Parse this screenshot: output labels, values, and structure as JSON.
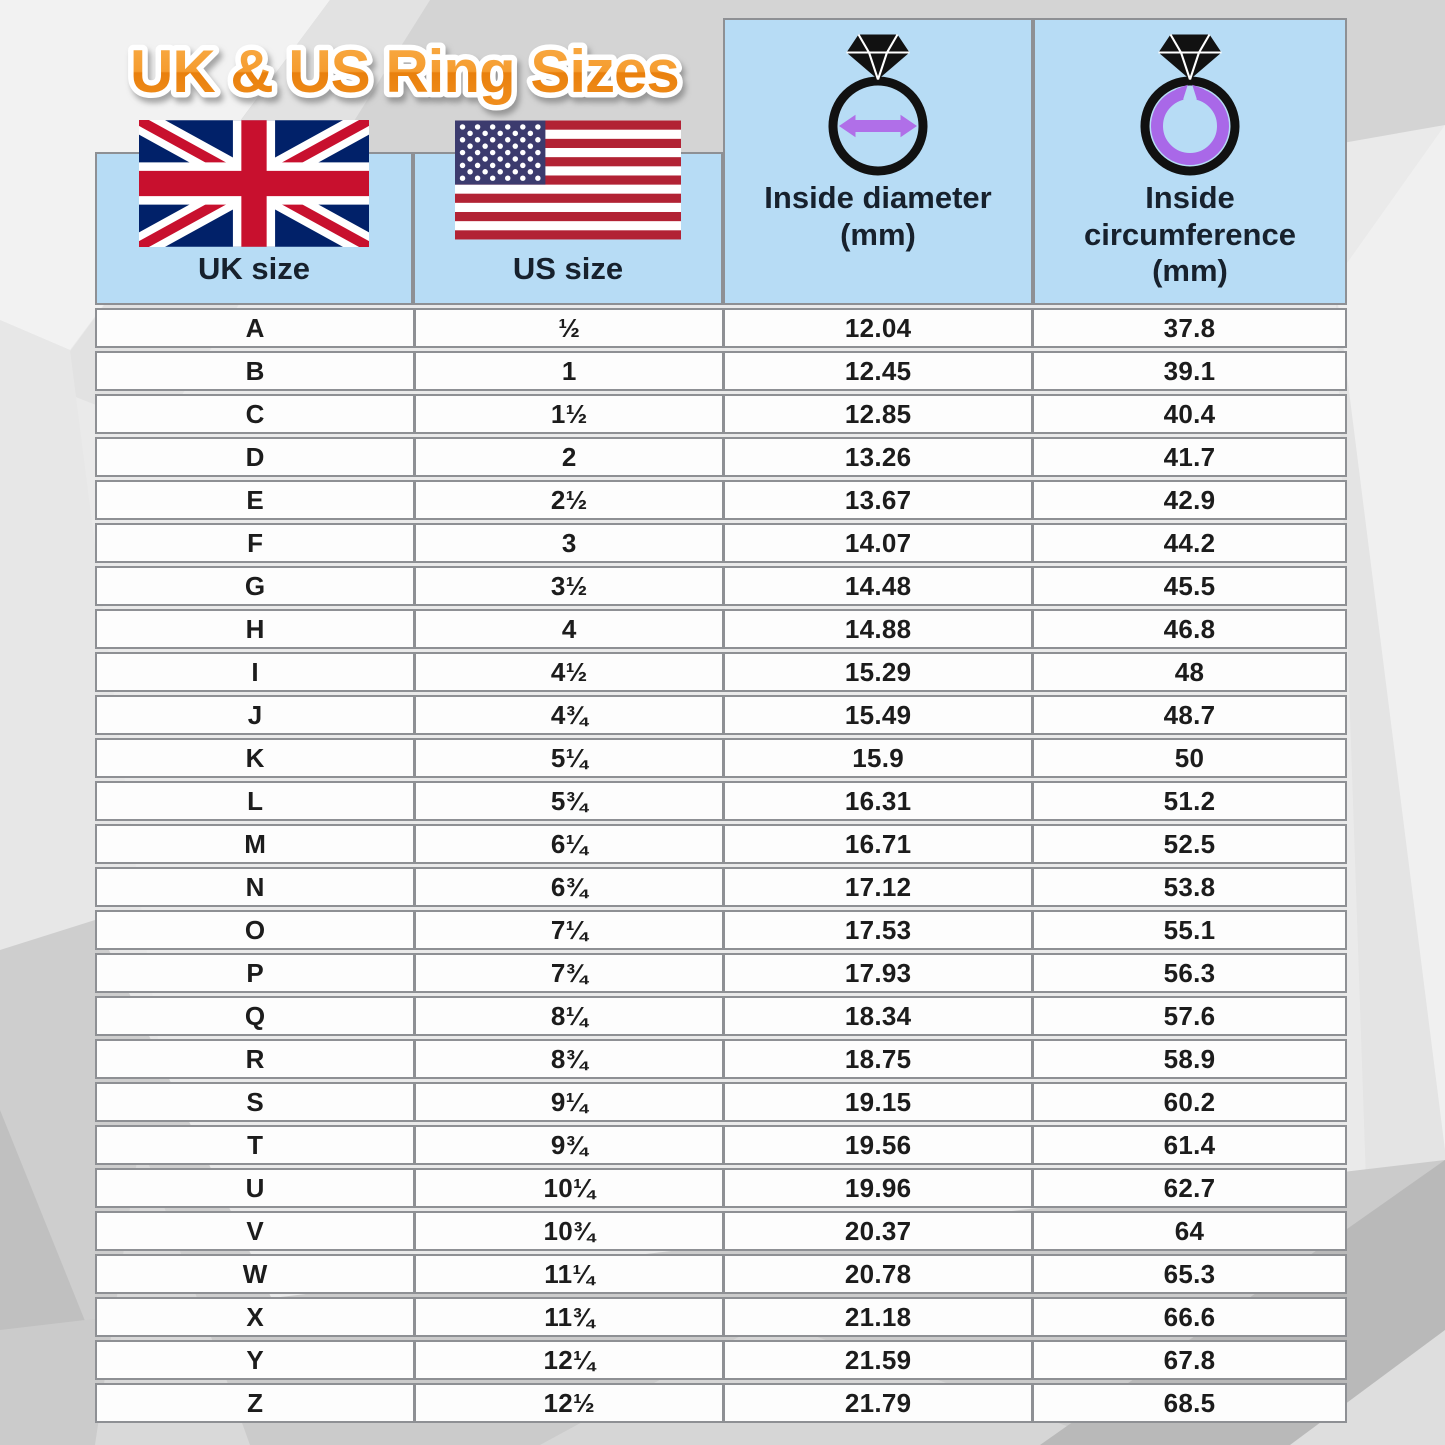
{
  "title": "UK & US Ring Sizes",
  "colors": {
    "title_orange_top": "#f8a73f",
    "title_orange_bottom": "#ec8310",
    "header_blue": "#b7dcf5",
    "border_gray": "#8e9094",
    "accent_purple": "#a968e8",
    "text_dark": "#17212d"
  },
  "table": {
    "columns": [
      {
        "key": "uk",
        "label": "UK size",
        "icon": "uk-flag"
      },
      {
        "key": "us",
        "label": "US size",
        "icon": "us-flag"
      },
      {
        "key": "diameter",
        "label": "Inside diameter (mm)",
        "lines": [
          "Inside diameter",
          "(mm)"
        ],
        "icon": "ring-diameter-icon"
      },
      {
        "key": "circumference",
        "label": "Inside circumference (mm)",
        "lines": [
          "Inside",
          "circumference",
          "(mm)"
        ],
        "icon": "ring-circumference-icon"
      }
    ],
    "rows": [
      {
        "uk": "A",
        "us": "½",
        "diameter": "12.04",
        "circumference": "37.8"
      },
      {
        "uk": "B",
        "us": "1",
        "diameter": "12.45",
        "circumference": "39.1"
      },
      {
        "uk": "C",
        "us": "1½",
        "diameter": "12.85",
        "circumference": "40.4"
      },
      {
        "uk": "D",
        "us": "2",
        "diameter": "13.26",
        "circumference": "41.7"
      },
      {
        "uk": "E",
        "us": "2½",
        "diameter": "13.67",
        "circumference": "42.9"
      },
      {
        "uk": "F",
        "us": "3",
        "diameter": "14.07",
        "circumference": "44.2"
      },
      {
        "uk": "G",
        "us": "3½",
        "diameter": "14.48",
        "circumference": "45.5"
      },
      {
        "uk": "H",
        "us": "4",
        "diameter": "14.88",
        "circumference": "46.8"
      },
      {
        "uk": "I",
        "us": "4½",
        "diameter": "15.29",
        "circumference": "48"
      },
      {
        "uk": "J",
        "us": "4¾",
        "diameter": "15.49",
        "circumference": "48.7"
      },
      {
        "uk": "K",
        "us": "5¼",
        "diameter": "15.9",
        "circumference": "50"
      },
      {
        "uk": "L",
        "us": "5¾",
        "diameter": "16.31",
        "circumference": "51.2"
      },
      {
        "uk": "M",
        "us": "6¼",
        "diameter": "16.71",
        "circumference": "52.5"
      },
      {
        "uk": "N",
        "us": "6¾",
        "diameter": "17.12",
        "circumference": "53.8"
      },
      {
        "uk": "O",
        "us": "7¼",
        "diameter": "17.53",
        "circumference": "55.1"
      },
      {
        "uk": "P",
        "us": "7¾",
        "diameter": "17.93",
        "circumference": "56.3"
      },
      {
        "uk": "Q",
        "us": "8¼",
        "diameter": "18.34",
        "circumference": "57.6"
      },
      {
        "uk": "R",
        "us": "8¾",
        "diameter": "18.75",
        "circumference": "58.9"
      },
      {
        "uk": "S",
        "us": "9¼",
        "diameter": "19.15",
        "circumference": "60.2"
      },
      {
        "uk": "T",
        "us": "9¾",
        "diameter": "19.56",
        "circumference": "61.4"
      },
      {
        "uk": "U",
        "us": "10¼",
        "diameter": "19.96",
        "circumference": "62.7"
      },
      {
        "uk": "V",
        "us": "10¾",
        "diameter": "20.37",
        "circumference": "64"
      },
      {
        "uk": "W",
        "us": "11¼",
        "diameter": "20.78",
        "circumference": "65.3"
      },
      {
        "uk": "X",
        "us": "11¾",
        "diameter": "21.18",
        "circumference": "66.6"
      },
      {
        "uk": "Y",
        "us": "12¼",
        "diameter": "21.59",
        "circumference": "67.8"
      },
      {
        "uk": "Z",
        "us": "12½",
        "diameter": "21.79",
        "circumference": "68.5"
      }
    ]
  }
}
